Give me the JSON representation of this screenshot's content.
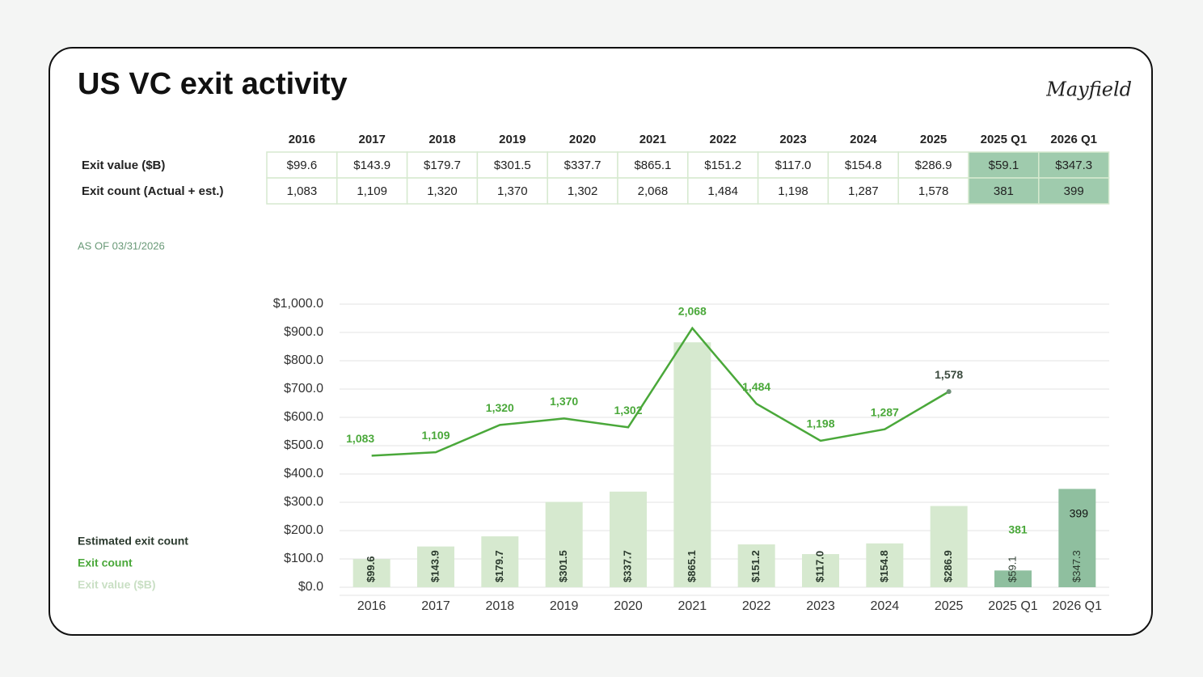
{
  "title": "US VC exit activity",
  "logo": "Mayfield",
  "table": {
    "columns": [
      "2016",
      "2017",
      "2018",
      "2019",
      "2020",
      "2021",
      "2022",
      "2023",
      "2024",
      "2025",
      "2025 Q1",
      "2026 Q1"
    ],
    "rows": [
      {
        "label": "Exit value ($B)",
        "cells": [
          "$99.6",
          "$143.9",
          "$179.7",
          "$301.5",
          "$337.7",
          "$865.1",
          "$151.2",
          "$117.0",
          "$154.8",
          "$286.9",
          "$59.1",
          "$347.3"
        ]
      },
      {
        "label": "Exit count (Actual + est.)",
        "cells": [
          "1,083",
          "1,109",
          "1,320",
          "1,370",
          "1,302",
          "2,068",
          "1,484",
          "1,198",
          "1,287",
          "1,578",
          "381",
          "399"
        ]
      }
    ]
  },
  "note": "AS OF 03/31/2026",
  "chart_data": {
    "type": "bar_line",
    "categories": [
      "2016",
      "2017",
      "2018",
      "2019",
      "2020",
      "2021",
      "2022",
      "2023",
      "2024",
      "2025",
      "2025 Q1",
      "2026 Q1"
    ],
    "ylim": [
      0,
      1000
    ],
    "yticks": [
      {
        "value": 0,
        "label": "$0.0"
      },
      {
        "value": 100,
        "label": "$100.0"
      },
      {
        "value": 200,
        "label": "$200.0"
      },
      {
        "value": 300,
        "label": "$300.0"
      },
      {
        "value": 400,
        "label": "$400.0"
      },
      {
        "value": 500,
        "label": "$500.0"
      },
      {
        "value": 600,
        "label": "$600.0"
      },
      {
        "value": 700,
        "label": "$700.0"
      },
      {
        "value": 800,
        "label": "$800.0"
      },
      {
        "value": 900,
        "label": "$900.0"
      },
      {
        "value": 1000,
        "label": "$1,000.0"
      }
    ],
    "y2lim": [
      66,
      2254
    ],
    "grid": true,
    "series": [
      {
        "name": "Exit value ($B)",
        "kind": "bar",
        "color": "#d6e9cf",
        "highlight_color": "#8fbf9f",
        "values": [
          99.6,
          143.9,
          179.7,
          301.5,
          337.7,
          865.1,
          151.2,
          117.0,
          154.8,
          286.9,
          59.1,
          347.3
        ],
        "value_labels": [
          "$99.6",
          "$143.9",
          "$179.7",
          "$301.5",
          "$337.7",
          "$865.1",
          "$151.2",
          "$117.0",
          "$154.8",
          "$286.9",
          "$59.1",
          "$347.3"
        ]
      },
      {
        "name": "Exit count",
        "kind": "line",
        "axis": "y2",
        "color": "#4aa83a",
        "values": [
          1083,
          1109,
          1320,
          1370,
          1302,
          2068,
          1484,
          1198,
          1287,
          1578,
          null,
          null
        ],
        "value_labels": [
          "1,083",
          "1,109",
          "1,320",
          "1,370",
          "1,302",
          "2,068",
          "1,484",
          "1,198",
          "1,287",
          "1,578",
          null,
          null
        ]
      },
      {
        "name": "Estimated exit count",
        "kind": "label",
        "axis": "y2",
        "color": "#2b3a2e",
        "values": [
          null,
          null,
          null,
          null,
          null,
          null,
          null,
          null,
          null,
          null,
          381,
          399
        ]
      }
    ],
    "legend": "left"
  }
}
